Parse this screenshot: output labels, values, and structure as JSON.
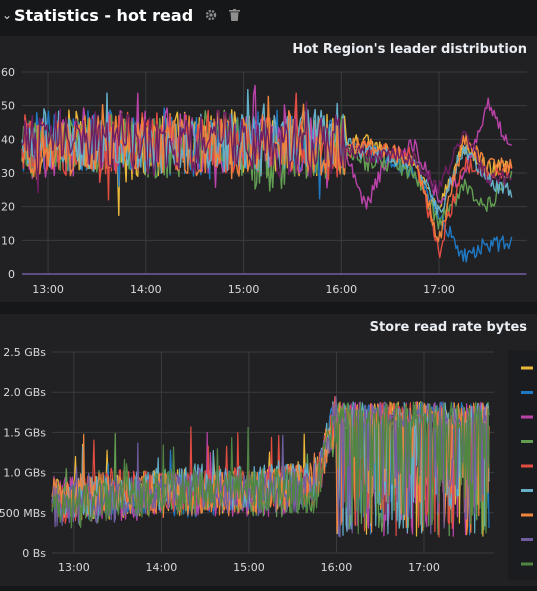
{
  "row": {
    "title": "Statistics - hot read"
  },
  "chart_data": [
    {
      "type": "line",
      "title": "Hot Region's leader distribution",
      "xlabel": "",
      "ylabel": "",
      "x_ticks": [
        "13:00",
        "14:00",
        "15:00",
        "16:00",
        "17:00"
      ],
      "y_ticks": [
        "0",
        "10",
        "20",
        "30",
        "40",
        "50",
        "60"
      ],
      "xlim": [
        "12:44",
        "17:54"
      ],
      "ylim": [
        0,
        60
      ],
      "grid": true,
      "series": [
        {
          "color": "#eab839",
          "x": [
            "12:44",
            "13:15",
            "13:45",
            "14:15",
            "14:45",
            "15:15",
            "15:45",
            "16:00",
            "16:15",
            "16:30",
            "16:45",
            "17:00",
            "17:15",
            "17:30",
            "17:45"
          ],
          "y": [
            38,
            40,
            36,
            39,
            41,
            37,
            38,
            39,
            40,
            35,
            32,
            20,
            38,
            31,
            32
          ]
        },
        {
          "color": "#1f78c1",
          "x": [
            "12:44",
            "13:15",
            "13:45",
            "14:15",
            "14:45",
            "15:15",
            "15:45",
            "16:00",
            "16:15",
            "16:30",
            "16:45",
            "17:00",
            "17:15",
            "17:30",
            "17:45"
          ],
          "y": [
            40,
            39,
            41,
            38,
            37,
            40,
            39,
            38,
            37,
            34,
            30,
            18,
            5,
            9,
            9
          ]
        },
        {
          "color": "#ba43a9",
          "x": [
            "12:44",
            "13:15",
            "13:45",
            "14:15",
            "14:45",
            "15:15",
            "15:45",
            "16:00",
            "16:15",
            "16:30",
            "16:45",
            "17:00",
            "17:15",
            "17:30",
            "17:45"
          ],
          "y": [
            37,
            38,
            40,
            41,
            38,
            39,
            37,
            40,
            20,
            36,
            38,
            22,
            30,
            50,
            38
          ]
        },
        {
          "color": "#629e51",
          "x": [
            "12:44",
            "13:15",
            "13:45",
            "14:15",
            "14:45",
            "15:15",
            "15:45",
            "16:00",
            "16:15",
            "16:30",
            "16:45",
            "17:00",
            "17:15",
            "17:30",
            "17:45"
          ],
          "y": [
            36,
            40,
            38,
            37,
            42,
            33,
            37,
            38,
            33,
            33,
            30,
            15,
            26,
            20,
            30
          ]
        },
        {
          "color": "#e24d42",
          "x": [
            "12:44",
            "13:15",
            "13:45",
            "14:15",
            "14:45",
            "15:15",
            "15:45",
            "16:00",
            "16:15",
            "16:30",
            "16:45",
            "17:00",
            "17:15",
            "17:30",
            "17:45"
          ],
          "y": [
            39,
            37,
            39,
            40,
            38,
            40,
            38,
            37,
            37,
            36,
            35,
            6,
            33,
            30,
            31
          ]
        },
        {
          "color": "#64b0c8",
          "x": [
            "12:44",
            "13:15",
            "13:45",
            "14:15",
            "14:45",
            "15:15",
            "15:45",
            "16:00",
            "16:15",
            "16:30",
            "16:45",
            "17:00",
            "17:15",
            "17:30",
            "17:45"
          ],
          "y": [
            41,
            39,
            37,
            38,
            39,
            38,
            41,
            39,
            36,
            35,
            33,
            18,
            38,
            28,
            24
          ]
        },
        {
          "color": "#ef843c",
          "x": [
            "12:44",
            "13:15",
            "13:45",
            "14:15",
            "14:45",
            "15:15",
            "15:45",
            "16:00",
            "16:15",
            "16:30",
            "16:45",
            "17:00",
            "17:15",
            "17:30",
            "17:45"
          ],
          "y": [
            35,
            38,
            40,
            39,
            37,
            41,
            38,
            38,
            38,
            36,
            34,
            10,
            40,
            32,
            32
          ]
        },
        {
          "color": "#6d1f62",
          "x": [
            "12:44",
            "13:15",
            "13:45",
            "14:15",
            "14:45",
            "15:15",
            "15:45",
            "16:00",
            "16:15",
            "16:30",
            "16:45",
            "17:00",
            "17:15",
            "17:30",
            "17:45"
          ],
          "y": [
            38,
            41,
            39,
            37,
            40,
            38,
            37,
            39,
            35,
            35,
            34,
            25,
            42,
            28,
            28
          ]
        },
        {
          "color": "#705da0",
          "x": [
            "12:44",
            "17:54"
          ],
          "y": [
            0,
            0
          ]
        }
      ]
    },
    {
      "type": "line",
      "title": "Store read rate bytes",
      "xlabel": "",
      "ylabel": "",
      "x_ticks": [
        "13:00",
        "14:00",
        "15:00",
        "16:00",
        "17:00"
      ],
      "y_ticks": [
        "0 Bs",
        "500 MBs",
        "1.0 GBs",
        "1.5 GBs",
        "2.0 GBs",
        "2.5 GBs"
      ],
      "xlim": [
        "12:45",
        "17:48"
      ],
      "ylim": [
        "0 Bs",
        "2.5 GBs"
      ],
      "grid": true,
      "legend": {
        "position": "right",
        "colors": [
          "#eab839",
          "#1f78c1",
          "#ba43a9",
          "#629e51",
          "#e24d42",
          "#64b0c8",
          "#ef843c",
          "#705da0",
          "#508642"
        ]
      },
      "series": [
        {
          "color": "#eab839",
          "x": [
            "12:45",
            "13:30",
            "14:15",
            "15:00",
            "15:45",
            "16:00",
            "16:30",
            "17:00",
            "17:45"
          ],
          "y_GBs": [
            0.65,
            0.7,
            0.8,
            0.75,
            0.9,
            1.75,
            1.5,
            1.7,
            1.75
          ]
        },
        {
          "color": "#1f78c1",
          "x": [
            "12:45",
            "13:30",
            "14:15",
            "15:00",
            "15:45",
            "16:00",
            "16:30",
            "17:00",
            "17:45"
          ],
          "y_GBs": [
            0.6,
            0.75,
            0.7,
            0.8,
            0.85,
            1.8,
            1.6,
            1.6,
            1.7
          ]
        },
        {
          "color": "#ba43a9",
          "x": [
            "12:45",
            "13:30",
            "14:15",
            "15:00",
            "15:45",
            "16:00",
            "16:30",
            "17:00",
            "17:45"
          ],
          "y_GBs": [
            0.7,
            0.65,
            0.75,
            0.7,
            0.8,
            1.7,
            1.3,
            1.5,
            1.6
          ]
        },
        {
          "color": "#629e51",
          "x": [
            "12:45",
            "13:30",
            "14:15",
            "15:00",
            "15:45",
            "16:00",
            "16:30",
            "17:00",
            "17:45"
          ],
          "y_GBs": [
            0.55,
            0.7,
            0.8,
            0.7,
            0.75,
            1.6,
            1.2,
            1.1,
            1.5
          ]
        },
        {
          "color": "#e24d42",
          "x": [
            "12:45",
            "13:30",
            "14:15",
            "15:00",
            "15:45",
            "16:00",
            "16:30",
            "17:00",
            "17:45"
          ],
          "y_GBs": [
            0.6,
            0.8,
            0.75,
            0.85,
            0.8,
            1.75,
            1.55,
            1.6,
            1.65
          ]
        },
        {
          "color": "#64b0c8",
          "x": [
            "12:45",
            "13:30",
            "14:15",
            "15:00",
            "15:45",
            "16:00",
            "16:30",
            "17:00",
            "17:45"
          ],
          "y_GBs": [
            0.65,
            0.7,
            0.85,
            0.8,
            0.9,
            1.8,
            1.6,
            1.75,
            1.7
          ]
        },
        {
          "color": "#ef843c",
          "x": [
            "12:45",
            "13:30",
            "14:15",
            "15:00",
            "15:45",
            "16:00",
            "16:30",
            "17:00",
            "17:45"
          ],
          "y_GBs": [
            0.7,
            0.75,
            0.7,
            0.75,
            0.85,
            1.7,
            1.4,
            1.6,
            1.6
          ]
        },
        {
          "color": "#705da0",
          "x": [
            "12:45",
            "13:30",
            "14:15",
            "15:00",
            "15:45",
            "16:00",
            "16:30",
            "17:00",
            "17:45"
          ],
          "y_GBs": [
            0.6,
            0.65,
            0.8,
            0.7,
            0.8,
            1.75,
            1.5,
            1.55,
            1.7
          ]
        },
        {
          "color": "#508642",
          "x": [
            "12:45",
            "13:30",
            "14:15",
            "15:00",
            "15:45",
            "16:00",
            "16:30",
            "17:00",
            "17:45"
          ],
          "y_GBs": [
            0.5,
            0.7,
            0.75,
            0.8,
            0.75,
            1.65,
            1.25,
            0.9,
            1.5
          ]
        }
      ]
    }
  ],
  "icons": {
    "settings": "gear-icon",
    "delete": "trash-icon",
    "collapse": "chevron-down-icon"
  }
}
